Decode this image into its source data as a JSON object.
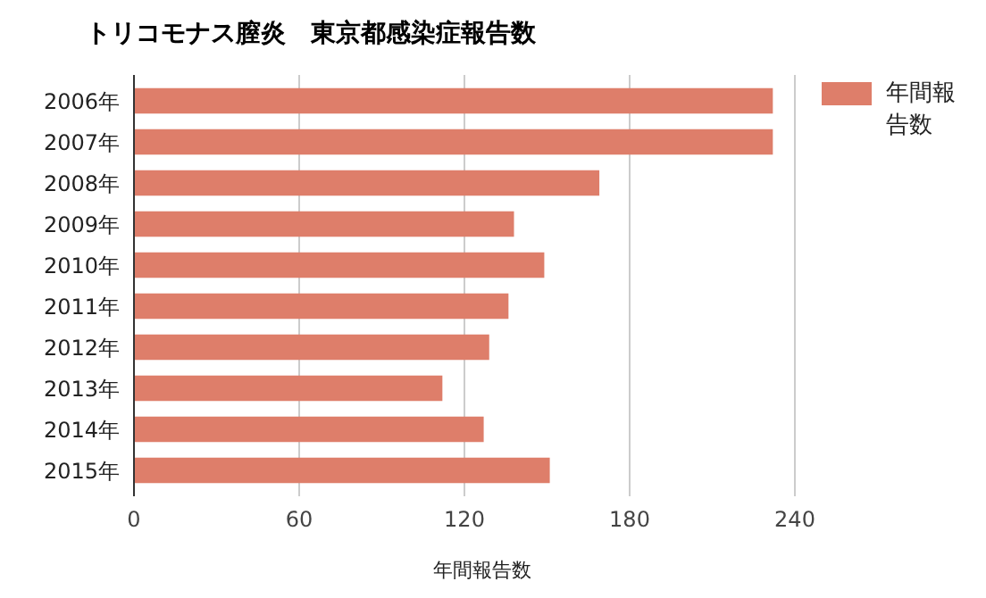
{
  "chart_data": {
    "type": "bar",
    "orientation": "horizontal",
    "title": "トリコモナス膣炎　東京都感染症報告数",
    "xlabel": "年間報告数",
    "categories": [
      "2006年",
      "2007年",
      "2008年",
      "2009年",
      "2010年",
      "2011年",
      "2012年",
      "2013年",
      "2014年",
      "2015年"
    ],
    "series": [
      {
        "name": "年間報告数",
        "color": "#de7e6a",
        "values": [
          232,
          232,
          169,
          138,
          149,
          136,
          129,
          112,
          127,
          151
        ]
      }
    ],
    "xlim": [
      0,
      240
    ],
    "xticks": [
      0,
      60,
      120,
      180,
      240
    ],
    "grid": "x",
    "legend": "top right"
  }
}
